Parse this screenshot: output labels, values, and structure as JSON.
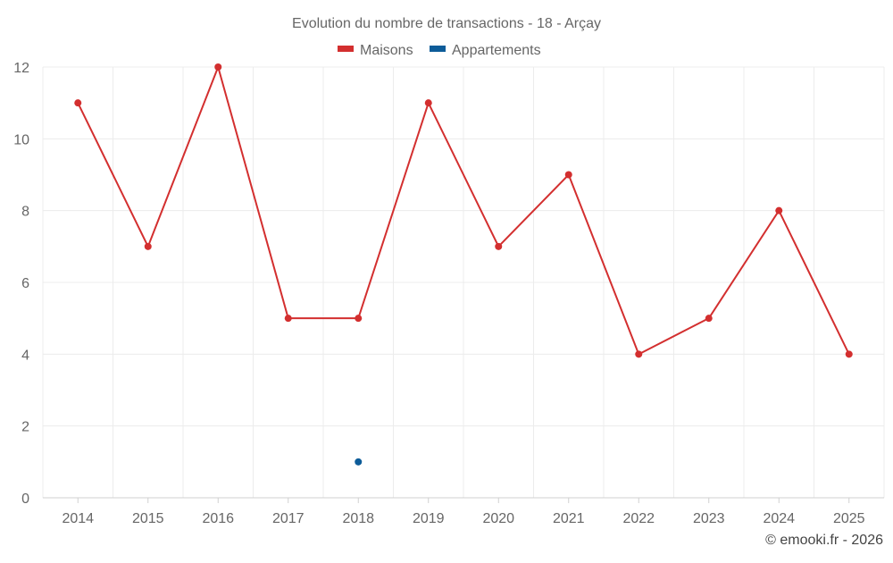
{
  "chart_data": {
    "type": "line",
    "title": "Evolution du nombre de transactions - 18 - Arçay",
    "categories": [
      "2014",
      "2015",
      "2016",
      "2017",
      "2018",
      "2019",
      "2020",
      "2021",
      "2022",
      "2023",
      "2024",
      "2025"
    ],
    "series": [
      {
        "name": "Maisons",
        "color": "#d32f2f",
        "values": [
          11,
          7,
          12,
          5,
          5,
          11,
          7,
          9,
          4,
          5,
          8,
          4
        ]
      },
      {
        "name": "Appartements",
        "color": "#0d5c99",
        "values": [
          null,
          null,
          null,
          null,
          1,
          null,
          null,
          null,
          null,
          null,
          null,
          null
        ]
      }
    ],
    "xlabel": "",
    "ylabel": "",
    "ylim": [
      0,
      12
    ],
    "yticks": [
      0,
      2,
      4,
      6,
      8,
      10,
      12
    ],
    "grid": true,
    "legend_position": "top-center"
  },
  "credit": "© emooki.fr - 2026"
}
